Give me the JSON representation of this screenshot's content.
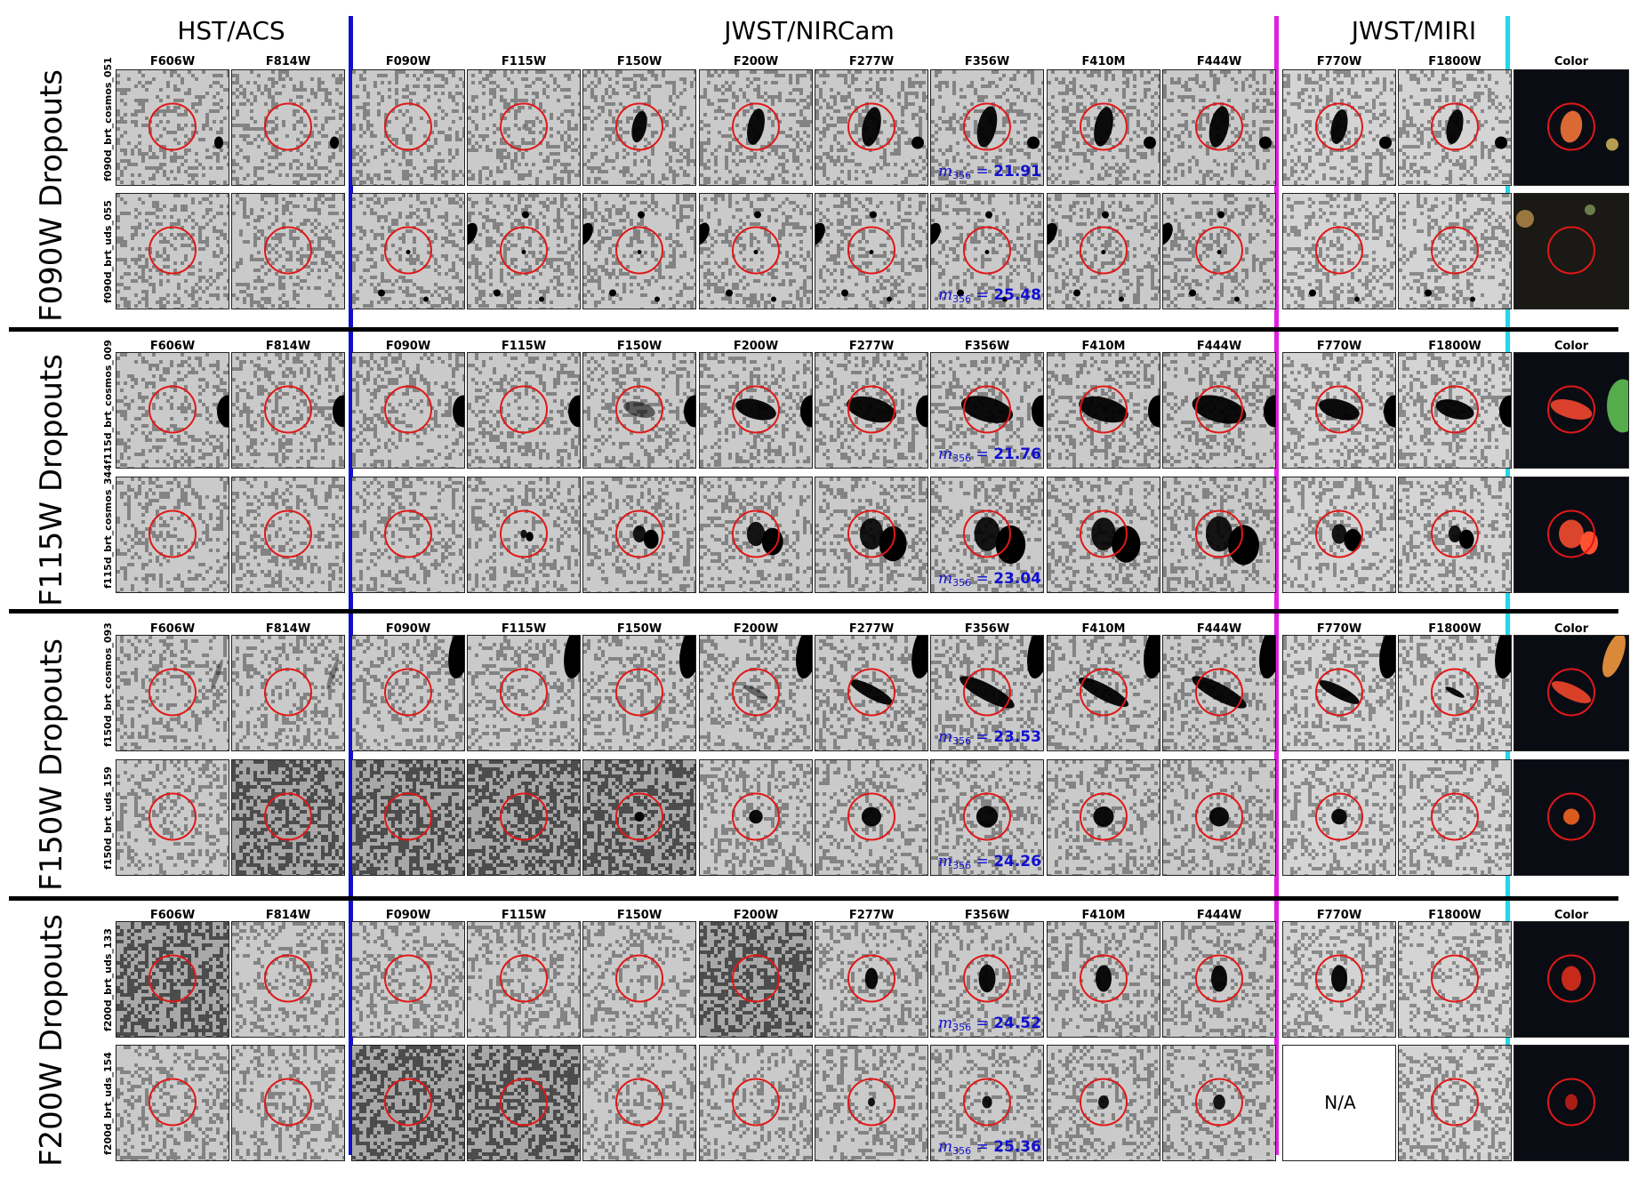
{
  "instruments": [
    {
      "name": "HST/ACS"
    },
    {
      "name": "JWST/NIRCam"
    },
    {
      "name": "JWST/MIRI"
    }
  ],
  "filters": [
    "F606W",
    "F814W",
    "F090W",
    "F115W",
    "F150W",
    "F200W",
    "F277W",
    "F356W",
    "F410M",
    "F444W",
    "F770W",
    "F1800W",
    "Color"
  ],
  "groups": [
    {
      "label": "F090W Dropouts",
      "rows": [
        {
          "id": "f090d_brt_cosmos_051",
          "mag_value": "21.91",
          "type": "blob"
        },
        {
          "id": "f090d_brt_uds_055",
          "mag_value": "25.48",
          "type": "point"
        }
      ]
    },
    {
      "label": "F115W Dropouts",
      "rows": [
        {
          "id": "f115d_brt_cosmos_009",
          "mag_value": "21.76",
          "type": "ellipse"
        },
        {
          "id": "f115d_brt_cosmos_344",
          "mag_value": "23.04",
          "type": "merger"
        }
      ]
    },
    {
      "label": "F150W Dropouts",
      "rows": [
        {
          "id": "f150d_brt_cosmos_093",
          "mag_value": "23.53",
          "type": "tilted"
        },
        {
          "id": "f150d_brt_uds_159",
          "mag_value": "24.26",
          "type": "compact"
        }
      ]
    },
    {
      "label": "F200W Dropouts",
      "rows": [
        {
          "id": "f200d_brt_uds_133",
          "mag_value": "24.52",
          "type": "compact2"
        },
        {
          "id": "f200d_brt_uds_154",
          "mag_value": "25.36",
          "type": "faint",
          "na_label": "N/A"
        }
      ]
    }
  ],
  "mag_symbol": "m",
  "mag_subscript": "356",
  "mag_equals": "=",
  "colors": {
    "circle": "#e01818",
    "magnitude_text": "#1010d0",
    "hst_jwst_divider": "#1010cc",
    "nircam_miri_divider": "#e020e0",
    "miri_color_divider": "#20d8e8",
    "group_separator": "#000000"
  }
}
